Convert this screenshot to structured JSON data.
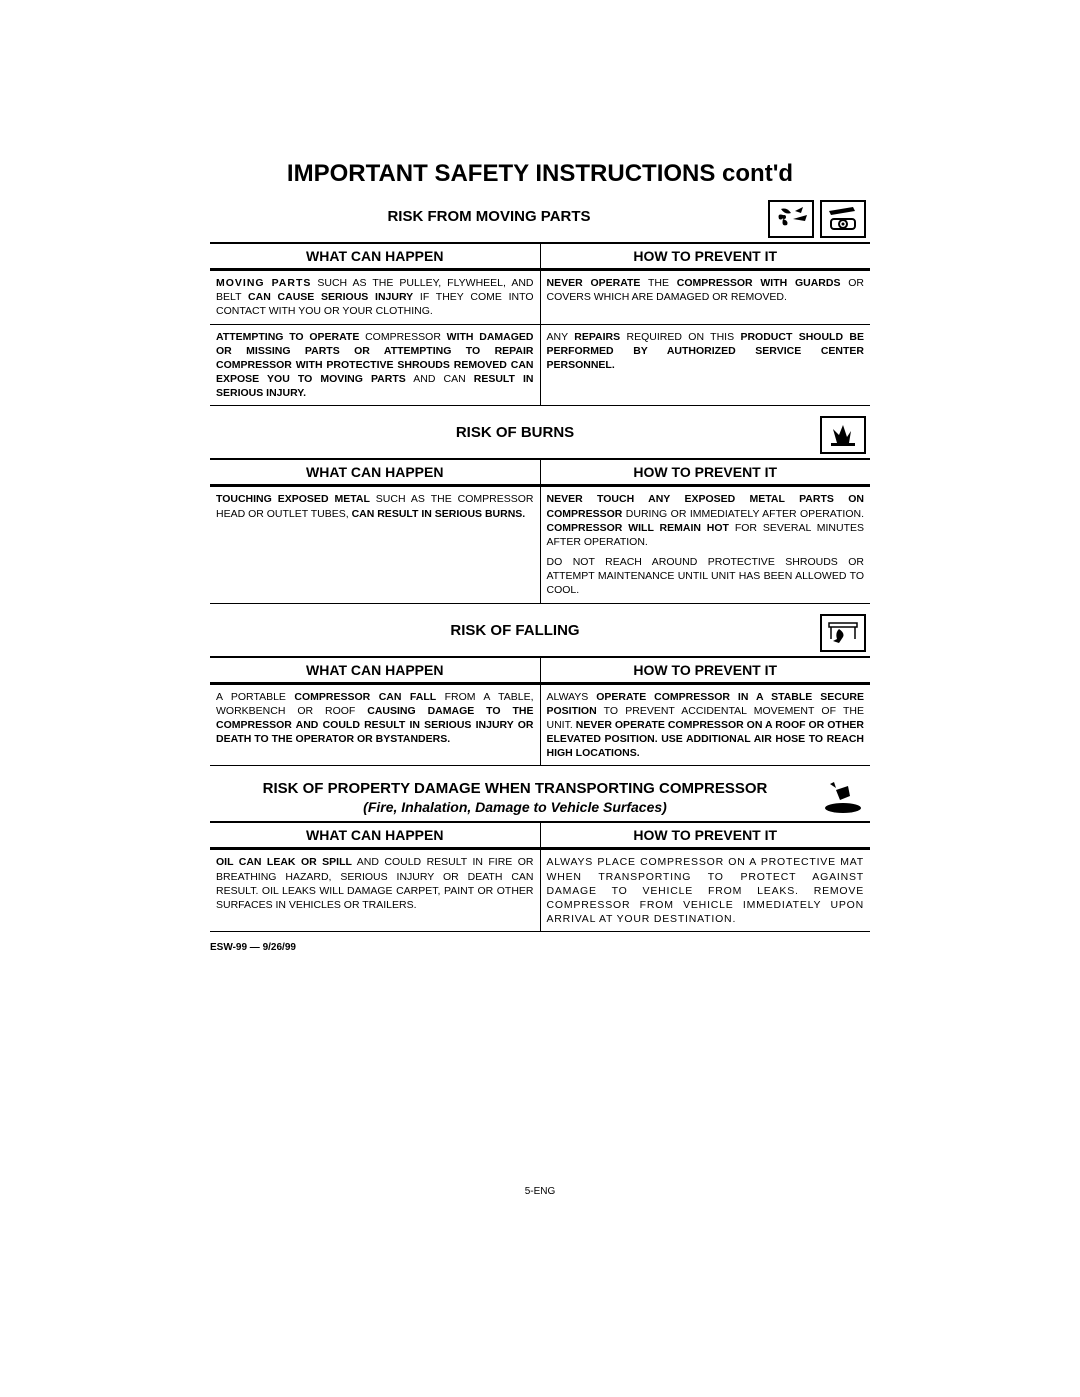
{
  "title": "IMPORTANT SAFETY INSTRUCTIONS cont'd",
  "col_left": "WHAT CAN HAPPEN",
  "col_right": "HOW TO PREVENT IT",
  "footer_ref": "ESW-99 — 9/26/99",
  "page_number": "5-ENG",
  "sections": [
    {
      "title": "RISK FROM MOVING PARTS",
      "icons": [
        "fan",
        "compressor"
      ],
      "rows": [
        {
          "left": "<span class='b sp'>MOVING PARTS</span> SUCH AS THE PULLEY, FLYWHEEL, AND BELT <span class='b'>CAN CAUSE SERIOUS INJURY</span> IF THEY COME INTO CONTACT WITH YOU OR YOUR CLOTHING.",
          "right": "<span class='b'>NEVER OPERATE</span> THE <span class='b'>COMPRESSOR WITH GUARDS</span> OR COVERS WHICH ARE DAMAGED OR REMOVED."
        },
        {
          "left": "<span class='b'>ATTEMPTING TO OPERATE</span> COMPRESSOR <span class='b'>WITH DAMAGED OR MISSING PARTS OR ATTEMPTING TO REPAIR COMPRESSOR WITH PROTECTIVE SHROUDS REMOVED CAN EXPOSE YOU TO MOVING PARTS</span> AND CAN <span class='b'>RESULT IN SERIOUS INJURY.</span>",
          "right": "ANY <span class='b'>REPAIRS</span> REQUIRED ON THIS <span class='b'>PRODUCT SHOULD BE PERFORMED BY AUTHORIZED SERVICE CENTER PERSONNEL.</span>"
        }
      ]
    },
    {
      "title": "RISK OF BURNS",
      "icons": [
        "burn"
      ],
      "rows": [
        {
          "left": "<span class='b'>TOUCHING EXPOSED METAL</span> SUCH AS THE COMPRESSOR HEAD OR OUTLET TUBES, <span class='b'>CAN RESULT IN SERIOUS BURNS.</span>",
          "right": "<span class='b'>NEVER TOUCH ANY EXPOSED METAL PARTS ON COMPRESSOR</span> DURING OR IMMEDIATELY AFTER OPERATION. <span class='b'>COMPRESSOR WILL REMAIN HOT</span> FOR SEVERAL MINUTES AFTER OPERATION.",
          "right2": "DO NOT REACH AROUND PROTECTIVE SHROUDS OR ATTEMPT MAINTENANCE UNTIL UNIT HAS BEEN ALLOWED TO COOL."
        }
      ]
    },
    {
      "title": "RISK OF FALLING",
      "icons": [
        "falling"
      ],
      "rows": [
        {
          "left": "A PORTABLE <span class='b'>COMPRESSOR CAN FALL</span> FROM A TABLE, WORKBENCH OR ROOF <span class='b'>CAUSING DAMAGE TO THE COMPRESSOR AND COULD RESULT IN SERIOUS INJURY OR DEATH TO THE OPERATOR OR BYSTANDERS.</span>",
          "right": "ALWAYS <span class='b'>OPERATE COMPRESSOR IN A STABLE SECURE POSITION</span> TO PREVENT ACCIDENTAL MOVEMENT OF THE UNIT. <span class='b'>NEVER OPERATE COMPRESSOR ON A ROOF OR OTHER ELEVATED POSITION. USE ADDITIONAL AIR HOSE TO REACH HIGH LOCATIONS.</span>"
        }
      ]
    },
    {
      "title": "RISK OF PROPERTY DAMAGE WHEN TRANSPORTING COMPRESSOR",
      "subtitle": "(Fire, Inhalation, Damage to Vehicle Surfaces)",
      "icons": [
        "spill"
      ],
      "rows": [
        {
          "left": "<span class='b'>OIL CAN LEAK OR SPILL</span> AND COULD RESULT IN FIRE OR BREATHING HAZARD, SERIOUS INJURY OR DEATH CAN RESULT. OIL LEAKS WILL DAMAGE CARPET, PAINT OR OTHER SURFACES IN VEHICLES OR TRAILERS.",
          "right": "ALWAYS PLACE COMPRESSOR ON A PROTECTIVE MAT WHEN TRANSPORTING TO PROTECT AGAINST DAMAGE TO VEHICLE FROM LEAKS. REMOVE COMPRESSOR FROM VEHICLE IMMEDIATELY UPON ARRIVAL AT YOUR DESTINATION."
        }
      ]
    }
  ]
}
